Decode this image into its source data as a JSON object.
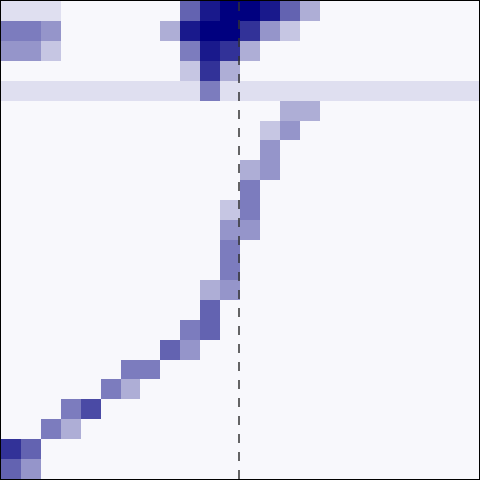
{
  "chart_data": {
    "type": "heatmap",
    "x": [
      0,
      1,
      2,
      3,
      4,
      5,
      6,
      7,
      8,
      9,
      10,
      11,
      12,
      13,
      14,
      15,
      16,
      17,
      18,
      19,
      20,
      21,
      22,
      23
    ],
    "y": [
      0,
      1,
      2,
      3,
      4,
      5,
      6,
      7,
      8,
      9,
      10,
      11,
      12,
      13,
      14,
      15,
      16,
      17,
      18,
      19,
      20,
      21,
      22,
      23
    ],
    "xlim": [
      -0.5,
      23.5
    ],
    "ylim": [
      23.5,
      -0.5
    ],
    "zlim": [
      0,
      1
    ],
    "colors": [
      "#f8f8fc",
      "#00007f"
    ],
    "tick_labels": false,
    "grid": false,
    "vline_x": 11.45,
    "cells": [
      [
        0.1,
        0.1,
        0.1,
        0,
        0,
        0,
        0,
        0,
        0,
        0.6,
        0.9,
        1,
        1,
        0.9,
        0.6,
        0.3,
        0,
        0,
        0,
        0,
        0,
        0,
        0,
        0
      ],
      [
        0.5,
        0.5,
        0.4,
        0,
        0,
        0,
        0,
        0,
        0.3,
        0.9,
        1,
        1,
        0.8,
        0.4,
        0.2,
        0,
        0,
        0,
        0,
        0,
        0,
        0,
        0,
        0
      ],
      [
        0.4,
        0.4,
        0.2,
        0,
        0,
        0,
        0,
        0,
        0,
        0.5,
        0.9,
        0.8,
        0.3,
        0,
        0,
        0,
        0,
        0,
        0,
        0,
        0,
        0,
        0,
        0
      ],
      [
        0,
        0,
        0,
        0,
        0,
        0,
        0,
        0,
        0,
        0.2,
        0.8,
        0.3,
        0,
        0,
        0,
        0,
        0,
        0,
        0,
        0,
        0,
        0,
        0,
        0
      ],
      [
        0.1,
        0.1,
        0.1,
        0.1,
        0.1,
        0.1,
        0.1,
        0.1,
        0.1,
        0.1,
        0.5,
        0.1,
        0.1,
        0.1,
        0.1,
        0.1,
        0.1,
        0.1,
        0.1,
        0.1,
        0.1,
        0.1,
        0.1,
        0.1
      ],
      [
        0,
        0,
        0,
        0,
        0,
        0,
        0,
        0,
        0,
        0,
        0,
        0,
        0,
        0,
        0.3,
        0.3,
        0,
        0,
        0,
        0,
        0,
        0,
        0,
        0
      ],
      [
        0,
        0,
        0,
        0,
        0,
        0,
        0,
        0,
        0,
        0,
        0,
        0,
        0,
        0.2,
        0.4,
        0,
        0,
        0,
        0,
        0,
        0,
        0,
        0,
        0
      ],
      [
        0,
        0,
        0,
        0,
        0,
        0,
        0,
        0,
        0,
        0,
        0,
        0,
        0,
        0.4,
        0,
        0,
        0,
        0,
        0,
        0,
        0,
        0,
        0,
        0
      ],
      [
        0,
        0,
        0,
        0,
        0,
        0,
        0,
        0,
        0,
        0,
        0,
        0,
        0.3,
        0.4,
        0,
        0,
        0,
        0,
        0,
        0,
        0,
        0,
        0,
        0
      ],
      [
        0,
        0,
        0,
        0,
        0,
        0,
        0,
        0,
        0,
        0,
        0,
        0,
        0.5,
        0,
        0,
        0,
        0,
        0,
        0,
        0,
        0,
        0,
        0,
        0
      ],
      [
        0,
        0,
        0,
        0,
        0,
        0,
        0,
        0,
        0,
        0,
        0,
        0.2,
        0.5,
        0,
        0,
        0,
        0,
        0,
        0,
        0,
        0,
        0,
        0,
        0
      ],
      [
        0,
        0,
        0,
        0,
        0,
        0,
        0,
        0,
        0,
        0,
        0,
        0.4,
        0.4,
        0,
        0,
        0,
        0,
        0,
        0,
        0,
        0,
        0,
        0,
        0
      ],
      [
        0,
        0,
        0,
        0,
        0,
        0,
        0,
        0,
        0,
        0,
        0,
        0.5,
        0,
        0,
        0,
        0,
        0,
        0,
        0,
        0,
        0,
        0,
        0,
        0
      ],
      [
        0,
        0,
        0,
        0,
        0,
        0,
        0,
        0,
        0,
        0,
        0,
        0.5,
        0,
        0,
        0,
        0,
        0,
        0,
        0,
        0,
        0,
        0,
        0,
        0
      ],
      [
        0,
        0,
        0,
        0,
        0,
        0,
        0,
        0,
        0,
        0,
        0.3,
        0.4,
        0,
        0,
        0,
        0,
        0,
        0,
        0,
        0,
        0,
        0,
        0,
        0
      ],
      [
        0,
        0,
        0,
        0,
        0,
        0,
        0,
        0,
        0,
        0,
        0.6,
        0,
        0,
        0,
        0,
        0,
        0,
        0,
        0,
        0,
        0,
        0,
        0,
        0
      ],
      [
        0,
        0,
        0,
        0,
        0,
        0,
        0,
        0,
        0,
        0.5,
        0.6,
        0,
        0,
        0,
        0,
        0,
        0,
        0,
        0,
        0,
        0,
        0,
        0,
        0
      ],
      [
        0,
        0,
        0,
        0,
        0,
        0,
        0,
        0,
        0.6,
        0.4,
        0,
        0,
        0,
        0,
        0,
        0,
        0,
        0,
        0,
        0,
        0,
        0,
        0,
        0
      ],
      [
        0,
        0,
        0,
        0,
        0,
        0,
        0.5,
        0.5,
        0,
        0,
        0,
        0,
        0,
        0,
        0,
        0,
        0,
        0,
        0,
        0,
        0,
        0,
        0,
        0
      ],
      [
        0,
        0,
        0,
        0,
        0,
        0.5,
        0.3,
        0,
        0,
        0,
        0,
        0,
        0,
        0,
        0,
        0,
        0,
        0,
        0,
        0,
        0,
        0,
        0,
        0
      ],
      [
        0,
        0,
        0,
        0.5,
        0.7,
        0,
        0,
        0,
        0,
        0,
        0,
        0,
        0,
        0,
        0,
        0,
        0,
        0,
        0,
        0,
        0,
        0,
        0,
        0
      ],
      [
        0,
        0,
        0.5,
        0.3,
        0,
        0,
        0,
        0,
        0,
        0,
        0,
        0,
        0,
        0,
        0,
        0,
        0,
        0,
        0,
        0,
        0,
        0,
        0,
        0
      ],
      [
        0.8,
        0.6,
        0,
        0,
        0,
        0,
        0,
        0,
        0,
        0,
        0,
        0,
        0,
        0,
        0,
        0,
        0,
        0,
        0,
        0,
        0,
        0,
        0,
        0
      ],
      [
        0.6,
        0.4,
        0,
        0,
        0,
        0,
        0,
        0,
        0,
        0,
        0,
        0,
        0,
        0,
        0,
        0,
        0,
        0,
        0,
        0,
        0,
        0,
        0,
        0
      ]
    ]
  }
}
